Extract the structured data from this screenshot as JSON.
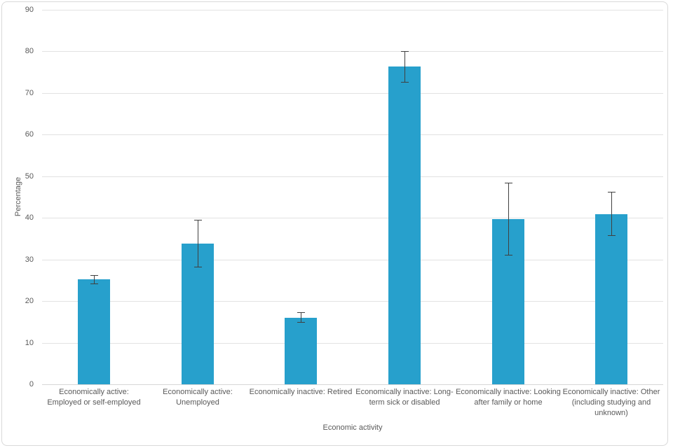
{
  "colors": {
    "bar": "#27A0CC",
    "error_bar": "#404040",
    "gridline": "#E2E2E2",
    "baseline": "#D6D6D6",
    "axis_text": "#595959",
    "frame_border": "#D9D9D9",
    "background": "#FFFFFF"
  },
  "chart_data": {
    "type": "bar",
    "title": "",
    "xlabel": "Economic activity",
    "ylabel": "Percentage",
    "ylim": [
      0,
      90
    ],
    "yticks": [
      0,
      10,
      20,
      30,
      40,
      50,
      60,
      70,
      80,
      90
    ],
    "grid": true,
    "legend": false,
    "error_bars": true,
    "categories": [
      "Economically active: Employed or self-employed",
      "Economically active: Unemployed",
      "Economically inactive: Retired",
      "Economically inactive: Long-term sick or disabled",
      "Economically inactive: Looking after family or home",
      "Economically inactive: Other (including studying and unknown)"
    ],
    "category_lines": [
      [
        "Economically active:",
        "Employed or self-employed"
      ],
      [
        "Economically active:",
        "Unemployed"
      ],
      [
        "Economically inactive: Retired"
      ],
      [
        "Economically inactive: Long-",
        "term sick or disabled"
      ],
      [
        "Economically inactive: Looking",
        "after family or home"
      ],
      [
        "Economically inactive: Other",
        "(including studying and",
        "unknown)"
      ]
    ],
    "values": [
      25.2,
      33.8,
      16.0,
      76.3,
      39.7,
      40.9
    ],
    "error_low": [
      24.2,
      28.2,
      15.0,
      72.6,
      31.1,
      35.9
    ],
    "error_high": [
      26.2,
      39.5,
      17.3,
      80.0,
      48.4,
      46.2
    ]
  }
}
